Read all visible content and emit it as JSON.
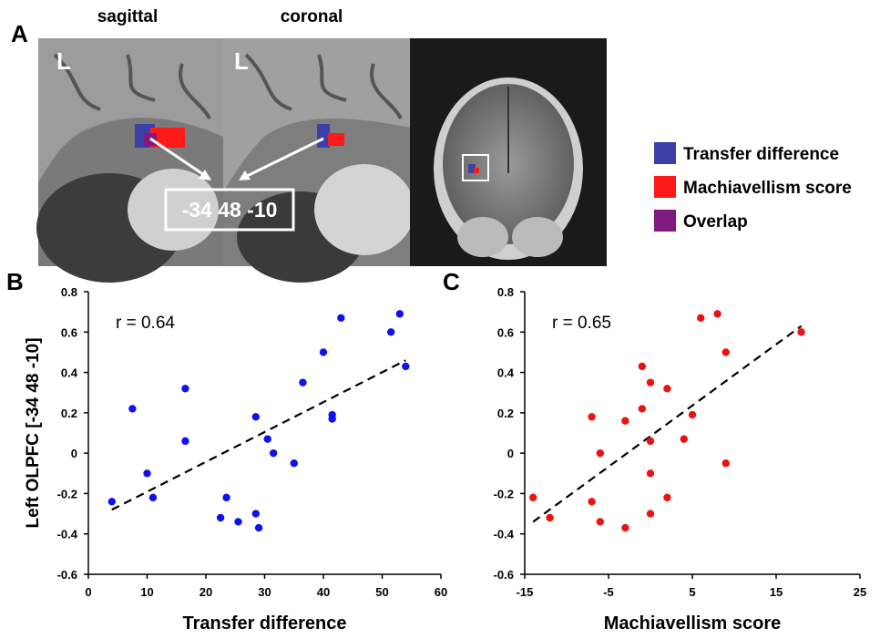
{
  "panel_a": {
    "label": "A",
    "views": [
      "sagittal",
      "coronal"
    ],
    "side_marks": [
      "L",
      "L"
    ],
    "coordinate": "-34 48 -10",
    "legend": [
      {
        "name": "Transfer difference",
        "color": "#3b3fa8"
      },
      {
        "name": "Machiavellism score",
        "color": "#ff1a1a"
      },
      {
        "name": "Overlap",
        "color": "#7f1a80"
      }
    ]
  },
  "chart_data": [
    {
      "type": "scatter",
      "panel": "B",
      "annotation": "r = 0.64",
      "x_label": "Transfer difference",
      "y_label": "Left OLPFC [-34 48 -10]",
      "color": "#1010f0",
      "x": [
        4,
        7.5,
        10,
        11,
        16.5,
        16.5,
        22.5,
        23.5,
        25.5,
        28.5,
        28.5,
        29,
        30.5,
        31.5,
        35,
        36.5,
        40,
        41.5,
        41.5,
        43,
        51.5,
        53,
        54
      ],
      "values": [
        -0.24,
        0.22,
        -0.1,
        -0.22,
        0.32,
        0.06,
        -0.32,
        -0.22,
        -0.34,
        0.18,
        -0.3,
        -0.37,
        0.07,
        0,
        -0.05,
        0.35,
        0.5,
        0.19,
        0.17,
        0.67,
        0.6,
        0.69,
        0.43
      ],
      "trendline": {
        "x": [
          4,
          54
        ],
        "y": [
          -0.28,
          0.46
        ]
      },
      "xlim": [
        0,
        60
      ],
      "xticks": [
        0,
        10,
        20,
        30,
        40,
        50,
        60
      ],
      "ylim": [
        -0.6,
        0.8
      ],
      "yticks": [
        -0.6,
        -0.4,
        -0.2,
        0,
        0.2,
        0.4,
        0.6,
        0.8
      ]
    },
    {
      "type": "scatter",
      "panel": "C",
      "annotation": "r = 0.65",
      "x_label": "Machiavellism score",
      "color": "#f01010",
      "x": [
        -14,
        -12,
        -7,
        -7,
        -6,
        -6,
        -3,
        -3,
        -1,
        -1,
        0,
        0,
        0,
        0,
        2,
        2,
        4,
        5,
        6,
        8,
        9,
        9,
        18
      ],
      "values": [
        -0.22,
        -0.32,
        0.18,
        -0.24,
        0,
        -0.34,
        0.16,
        -0.37,
        0.43,
        0.22,
        0.35,
        0.06,
        -0.1,
        -0.3,
        0.32,
        -0.22,
        0.07,
        0.19,
        0.67,
        0.69,
        0.5,
        -0.05,
        0.6
      ],
      "trendline": {
        "x": [
          -14,
          18
        ],
        "y": [
          -0.34,
          0.63
        ]
      },
      "xlim": [
        -15,
        25
      ],
      "xticks": [
        -15,
        -5,
        5,
        15,
        25
      ],
      "ylim": [
        -0.6,
        0.8
      ],
      "yticks": [
        -0.6,
        -0.4,
        -0.2,
        0,
        0.2,
        0.4,
        0.6,
        0.8
      ]
    }
  ]
}
